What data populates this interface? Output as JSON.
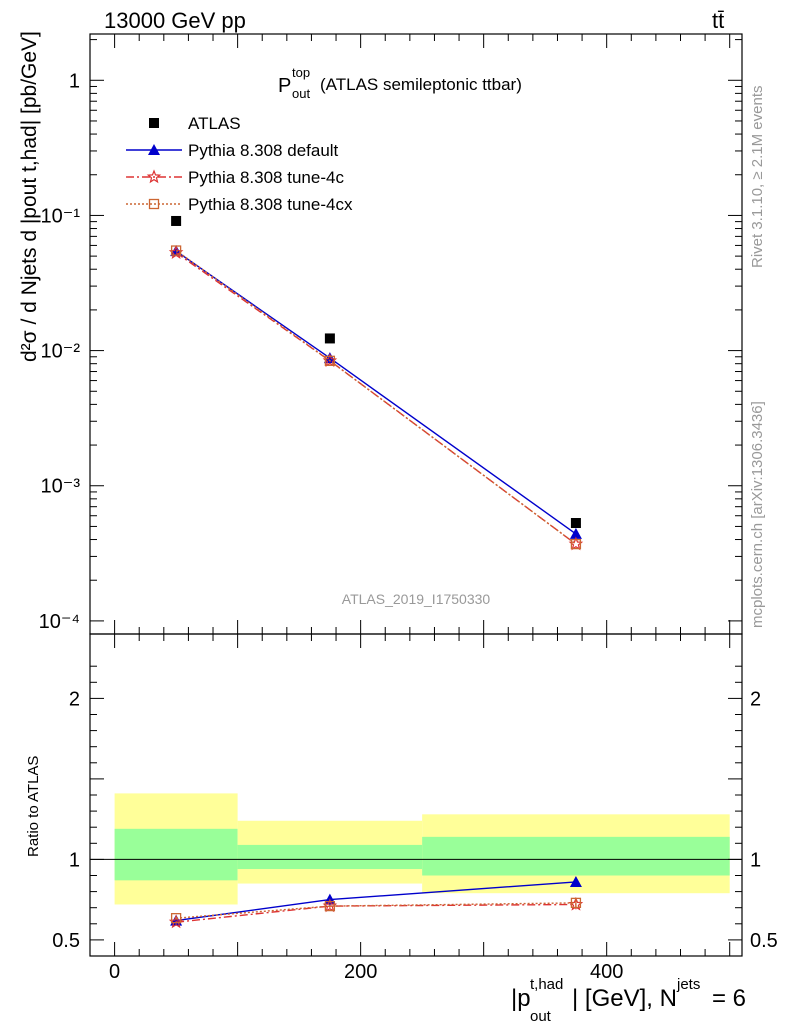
{
  "header": {
    "left": "13000 GeV pp",
    "right": "tt̄"
  },
  "side": {
    "rivet": "Rivet 3.1.10, ≥ 2.1M events",
    "mcplots": "mcplots.cern.ch [arXiv:1306.3436]"
  },
  "chart_data": [
    {
      "type": "scatter",
      "panel": "main",
      "title_main": "P",
      "title_sub": "out",
      "title_sup": "top",
      "title_rest": "(ATLAS semileptonic ttbar)",
      "watermark": "ATLAS_2019_I1750330",
      "ylabel": "d²σ / d Njets d |pout t,had| [pb/GeV]",
      "yscale": "log",
      "ylim": [
        8e-05,
        2.2
      ],
      "xlim": [
        -20,
        510
      ],
      "y_tick_labels": [
        "10⁻⁴",
        "10⁻³",
        "10⁻²",
        "10⁻¹",
        "1"
      ],
      "legend_position": "top-left",
      "series": [
        {
          "name": "ATLAS",
          "color": "#000000",
          "marker": "square",
          "x": [
            50,
            175,
            375
          ],
          "y": [
            0.091,
            0.0123,
            0.00053
          ]
        },
        {
          "name": "Pythia 8.308 default",
          "color": "#0000cc",
          "marker": "triangle",
          "line": "solid",
          "x": [
            50,
            175,
            375
          ],
          "y": [
            0.0545,
            0.0088,
            0.00044
          ]
        },
        {
          "name": "Pythia 8.308 tune-4c",
          "color": "#dd3333",
          "marker": "star",
          "line": "dashdot",
          "x": [
            50,
            175,
            375
          ],
          "y": [
            0.053,
            0.0084,
            0.00037
          ]
        },
        {
          "name": "Pythia 8.308 tune-4cx",
          "color": "#cc6633",
          "marker": "open-square",
          "line": "dotted",
          "x": [
            50,
            175,
            375
          ],
          "y": [
            0.055,
            0.0084,
            0.00037
          ]
        }
      ]
    },
    {
      "type": "line",
      "panel": "ratio",
      "ylabel": "Ratio to ATLAS",
      "xlabel_parts": {
        "pre": "|p",
        "sub": "out",
        "sup": "t,had",
        "post": "| [GeV], N",
        "sup2": "jets",
        "post2": " = 6"
      },
      "ylim": [
        0.4,
        2.4
      ],
      "xlim": [
        -20,
        510
      ],
      "x_ticks": [
        0,
        200,
        400
      ],
      "y_ticks": [
        0.5,
        1,
        2
      ],
      "bands": [
        {
          "x": [
            0,
            100
          ],
          "yellow": [
            0.72,
            1.41
          ],
          "green": [
            0.87,
            1.19
          ]
        },
        {
          "x": [
            100,
            250
          ],
          "yellow": [
            0.85,
            1.24
          ],
          "green": [
            0.94,
            1.09
          ]
        },
        {
          "x": [
            250,
            500
          ],
          "yellow": [
            0.79,
            1.28
          ],
          "green": [
            0.9,
            1.14
          ]
        }
      ],
      "series": [
        {
          "name": "Pythia 8.308 default",
          "color": "#0000cc",
          "marker": "triangle",
          "line": "solid",
          "x": [
            50,
            175,
            375
          ],
          "y": [
            0.62,
            0.75,
            0.86
          ],
          "err": [
            0.01,
            0.01,
            0.03
          ]
        },
        {
          "name": "Pythia 8.308 tune-4c",
          "color": "#dd3333",
          "marker": "star",
          "line": "dashdot",
          "x": [
            50,
            175,
            375
          ],
          "y": [
            0.61,
            0.71,
            0.72
          ],
          "err": [
            0.01,
            0.01,
            0.03
          ]
        },
        {
          "name": "Pythia 8.308 tune-4cx",
          "color": "#cc6633",
          "marker": "open-square",
          "line": "dotted",
          "x": [
            50,
            175,
            375
          ],
          "y": [
            0.635,
            0.71,
            0.73
          ],
          "err": [
            0.01,
            0.01,
            0.03
          ]
        }
      ]
    }
  ]
}
